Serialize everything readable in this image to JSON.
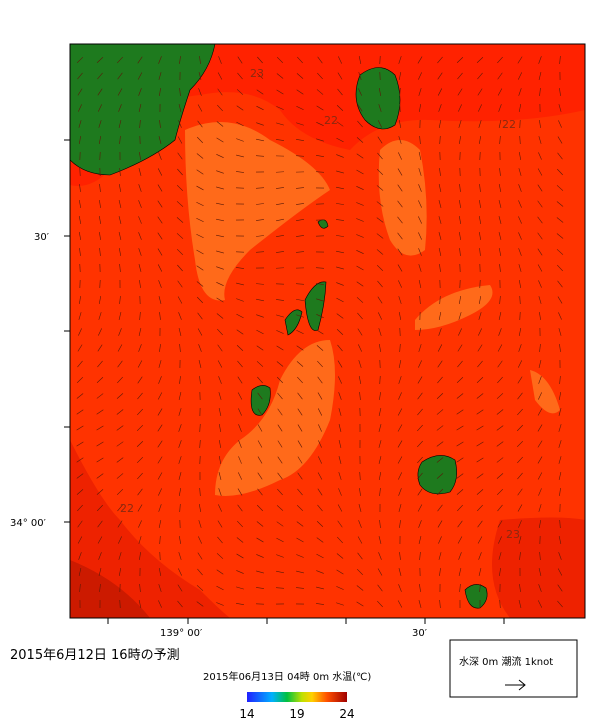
{
  "map": {
    "title": "2015年6月12日 16時の予測",
    "subtitle": "2015年06月13日 04時 0m 水温(℃)",
    "y_labels": [
      "30′",
      "34° 00′"
    ],
    "x_labels": [
      "139° 00′",
      "30′"
    ],
    "contour_labels": [
      "23",
      "22",
      "22",
      "22",
      "23"
    ],
    "colorbar_ticks": [
      14,
      19,
      24
    ],
    "legend": "水深 0m 潮流 1knot"
  }
}
